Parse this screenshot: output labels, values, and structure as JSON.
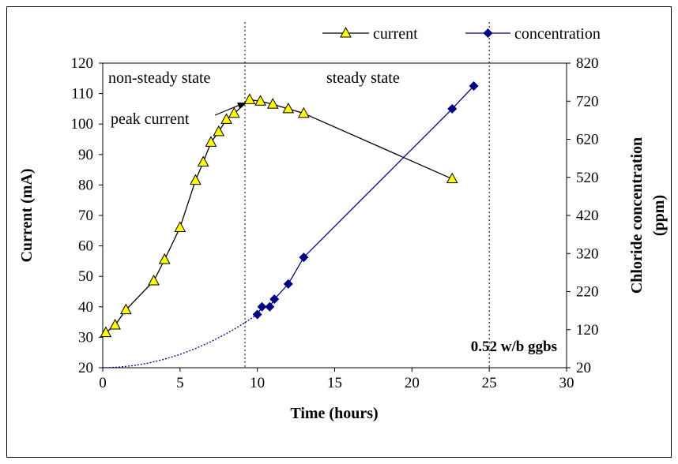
{
  "chart_data": {
    "type": "line",
    "xlabel": "Time (hours)",
    "ylabel": "Current  (mA)",
    "y2label_line1": "Chloride concentration",
    "y2label_line2": "(ppm)",
    "xlim": [
      0,
      30
    ],
    "ylim": [
      20,
      120
    ],
    "y2lim": [
      20,
      820
    ],
    "x_ticks": [
      0,
      5,
      10,
      15,
      20,
      25,
      30
    ],
    "y_ticks": [
      20,
      30,
      40,
      50,
      60,
      70,
      80,
      90,
      100,
      110,
      120
    ],
    "y2_ticks": [
      20,
      120,
      220,
      320,
      420,
      520,
      620,
      720,
      820
    ],
    "grid": false,
    "legend_position": "top-right",
    "series": [
      {
        "name": "current",
        "axis": "left",
        "marker": "triangle",
        "color": "#000000",
        "marker_fill": "#ffff00",
        "x": [
          0.2,
          0.8,
          1.5,
          3.3,
          4.0,
          5.0,
          6.0,
          6.5,
          7.0,
          7.5,
          8.0,
          8.5,
          9.5,
          10.2,
          11.0,
          12.0,
          13.0,
          22.6
        ],
        "y": [
          31.5,
          34.0,
          39.0,
          48.5,
          55.5,
          66.0,
          81.5,
          87.5,
          94.0,
          97.5,
          101.5,
          103.5,
          108.0,
          107.5,
          106.5,
          105.0,
          103.5,
          82.0
        ]
      },
      {
        "name": "concentration",
        "axis": "right",
        "marker": "diamond",
        "color": "#000080",
        "marker_fill": "#000080",
        "x": [
          10.0,
          10.3,
          10.8,
          11.1,
          12.0,
          13.0,
          22.6,
          24.0
        ],
        "y": [
          160,
          180,
          180,
          200,
          240,
          310,
          700,
          760
        ]
      }
    ],
    "extrapolation_curve": {
      "axis": "right",
      "color": "#000080",
      "style": "dotted",
      "x": [
        0,
        1,
        2,
        3,
        4,
        5,
        6,
        7,
        8,
        9,
        10
      ],
      "y": [
        20,
        21.4,
        25.6,
        32.6,
        42.4,
        55,
        70.4,
        88.6,
        109.6,
        133.4,
        160
      ]
    },
    "vertical_markers": [
      9.2,
      25.0
    ],
    "annotations": {
      "region_left": "non-steady state",
      "region_right": "steady state",
      "peak": "peak current",
      "peak_arrow_target": [
        9.4,
        108.0
      ],
      "label": "0.52 w/b ggbs"
    }
  }
}
